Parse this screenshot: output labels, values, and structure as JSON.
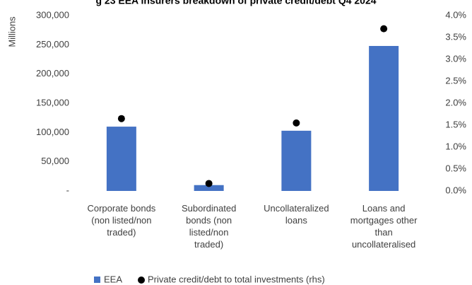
{
  "chart_data": {
    "type": "bar_dot",
    "title": "g 23 EEA insurers breakdown of private credit/debt Q4 2024",
    "ylabel": "Millions",
    "categories": [
      "Corporate bonds\n(non listed/non\ntraded)",
      "Subordinated\nbonds (non\nlisted/non\ntraded)",
      "Uncollateralized\nloans",
      "Loans and\nmortgages other\nthan\nuncollateralised"
    ],
    "series": [
      {
        "name": "EEA",
        "color": "#4472c4",
        "values": [
          110000,
          10000,
          103000,
          248000
        ]
      },
      {
        "name": "Private credit/debt to total investments (rhs)",
        "color": "#000000",
        "axis": "y2",
        "values": [
          1.65,
          0.17,
          1.55,
          3.7
        ]
      }
    ],
    "ylim": [
      0,
      300000
    ],
    "yticks": [
      {
        "value": 0,
        "label": "-"
      },
      {
        "value": 50000,
        "label": "50,000"
      },
      {
        "value": 100000,
        "label": "100,000"
      },
      {
        "value": 150000,
        "label": "150,000"
      },
      {
        "value": 200000,
        "label": "200,000"
      },
      {
        "value": 250000,
        "label": "250,000"
      },
      {
        "value": 300000,
        "label": "300,000"
      }
    ],
    "y2lim": [
      0,
      4
    ],
    "y2ticks": [
      {
        "value": 0,
        "label": "0.0%"
      },
      {
        "value": 0.5,
        "label": "0.5%"
      },
      {
        "value": 1,
        "label": "1.0%"
      },
      {
        "value": 1.5,
        "label": "1.5%"
      },
      {
        "value": 2,
        "label": "2.0%"
      },
      {
        "value": 2.5,
        "label": "2.5%"
      },
      {
        "value": 3,
        "label": "3.0%"
      },
      {
        "value": 3.5,
        "label": "3.5%"
      },
      {
        "value": 4,
        "label": "4.0%"
      }
    ],
    "legend": "bottom"
  }
}
